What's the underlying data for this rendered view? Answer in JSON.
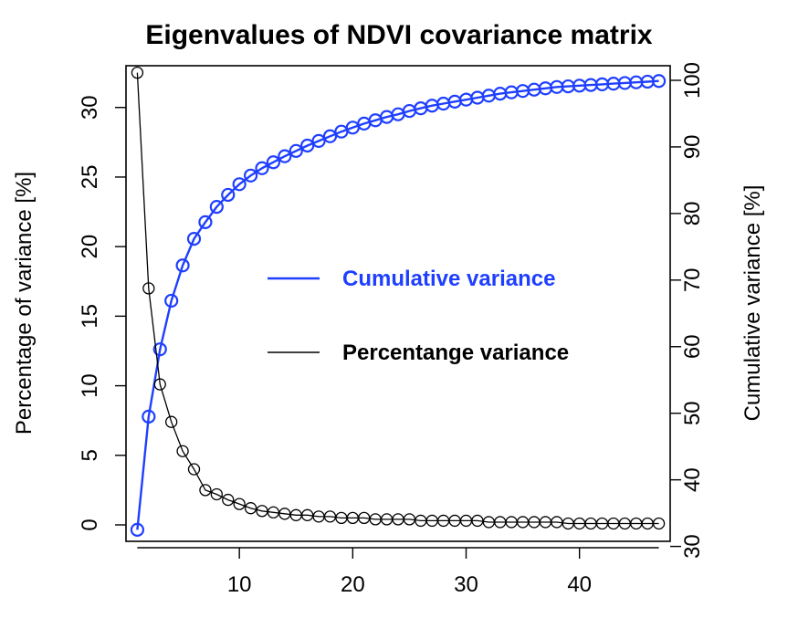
{
  "chart_data": {
    "type": "line",
    "title": "Eigenvalues of NDVI covariance matrix",
    "xlabel": "",
    "ylabel_left": "Percentage of variance [%]",
    "ylabel_right": "Cumulative variance [%]",
    "xlim": [
      0,
      48
    ],
    "ylim_left": [
      0,
      33
    ],
    "ylim_right": [
      32,
      100
    ],
    "x_ticks": [
      10,
      20,
      30,
      40
    ],
    "y_ticks_left": [
      0,
      5,
      10,
      15,
      20,
      25,
      30
    ],
    "y_ticks_right": [
      30,
      40,
      50,
      60,
      70,
      80,
      90,
      100
    ],
    "grid": false,
    "legend_position": "center",
    "x": [
      1,
      2,
      3,
      4,
      5,
      6,
      7,
      8,
      9,
      10,
      11,
      12,
      13,
      14,
      15,
      16,
      17,
      18,
      19,
      20,
      21,
      22,
      23,
      24,
      25,
      26,
      27,
      28,
      29,
      30,
      31,
      32,
      33,
      34,
      35,
      36,
      37,
      38,
      39,
      40,
      41,
      42,
      43,
      44,
      45,
      46,
      47
    ],
    "series": [
      {
        "name": "Cumulative variance",
        "axis": "right",
        "color": "#1f3fff",
        "values": [
          32.5,
          49.5,
          59.6,
          66.9,
          72.2,
          76.2,
          78.7,
          81.0,
          82.8,
          84.4,
          85.7,
          86.8,
          87.7,
          88.6,
          89.4,
          90.2,
          90.9,
          91.6,
          92.3,
          92.9,
          93.5,
          94.0,
          94.5,
          94.9,
          95.4,
          95.8,
          96.2,
          96.5,
          96.8,
          97.1,
          97.4,
          97.7,
          98.0,
          98.2,
          98.4,
          98.6,
          98.8,
          99.0,
          99.1,
          99.2,
          99.3,
          99.4,
          99.5,
          99.6,
          99.7,
          99.8,
          99.9
        ]
      },
      {
        "name": "Percentange variance",
        "axis": "left",
        "color": "#000000",
        "values": [
          32.5,
          17.0,
          10.1,
          7.4,
          5.3,
          4.0,
          2.5,
          2.2,
          1.8,
          1.5,
          1.2,
          1.0,
          0.9,
          0.8,
          0.7,
          0.7,
          0.6,
          0.6,
          0.5,
          0.5,
          0.5,
          0.4,
          0.4,
          0.4,
          0.4,
          0.3,
          0.3,
          0.3,
          0.3,
          0.3,
          0.3,
          0.2,
          0.2,
          0.2,
          0.2,
          0.2,
          0.2,
          0.2,
          0.1,
          0.1,
          0.1,
          0.1,
          0.1,
          0.1,
          0.1,
          0.1,
          0.1
        ]
      }
    ]
  }
}
